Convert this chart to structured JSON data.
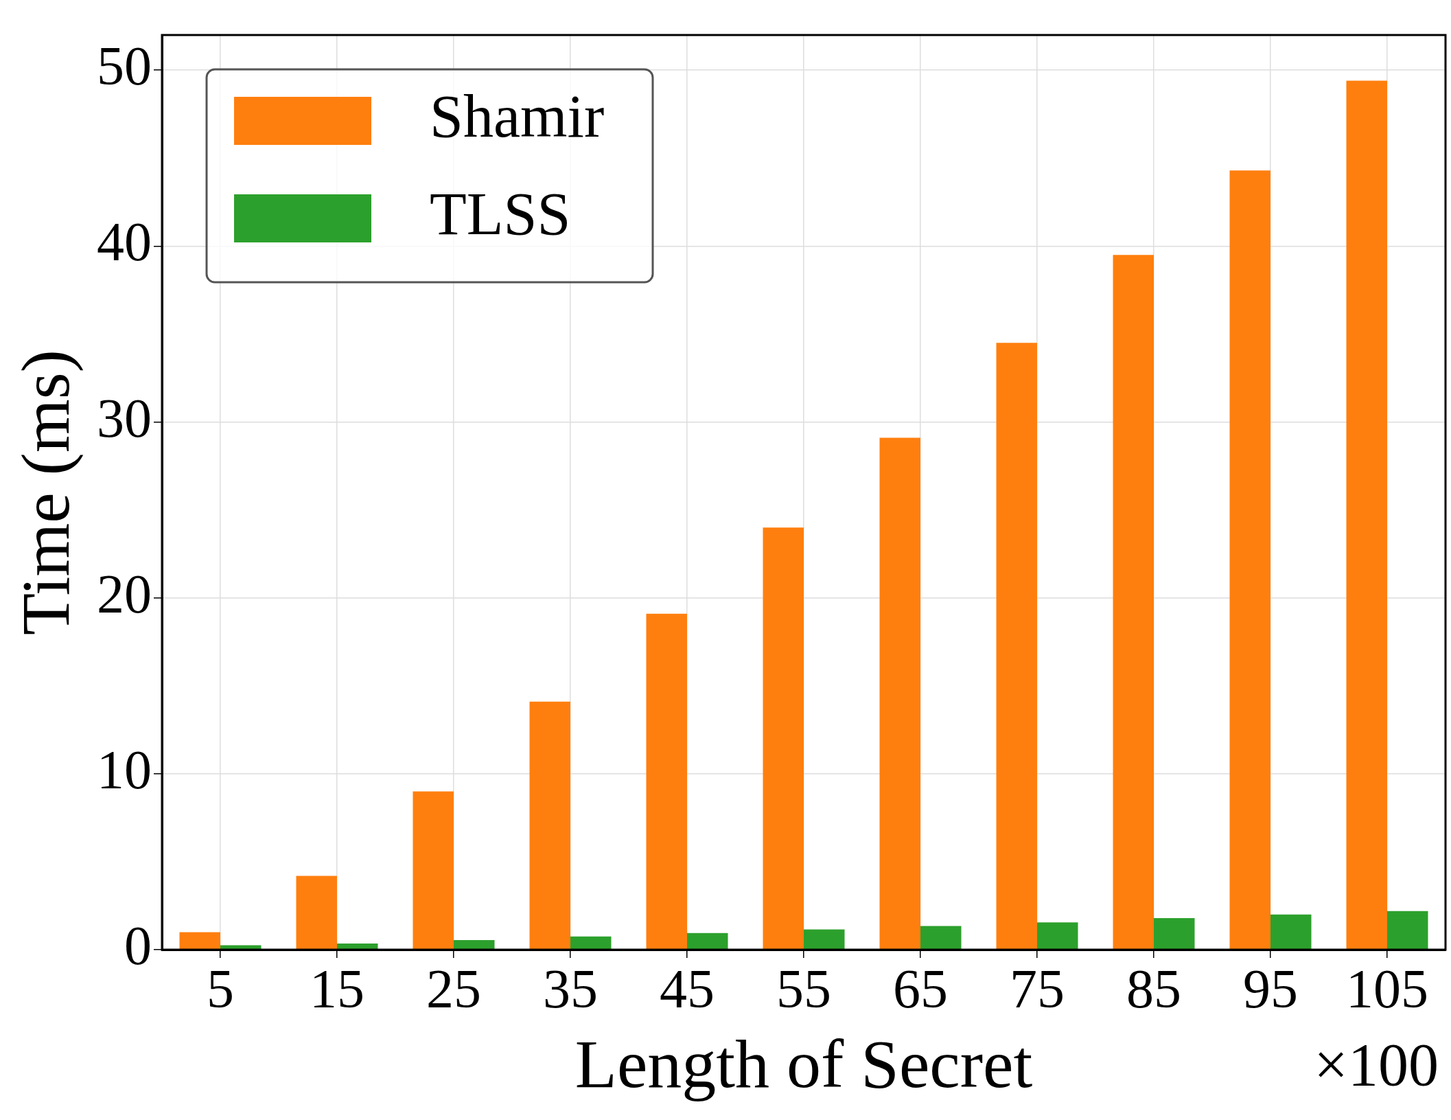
{
  "chart_data": {
    "type": "bar",
    "xlabel": "Length of Secret",
    "ylabel": "Time (ms)",
    "categories": [
      "5",
      "15",
      "25",
      "35",
      "45",
      "55",
      "65",
      "75",
      "85",
      "95",
      "105"
    ],
    "series": [
      {
        "name": "Shamir",
        "color": "#ff7f0e",
        "values": [
          1.0,
          4.2,
          9.0,
          14.1,
          19.1,
          24.0,
          29.1,
          34.5,
          39.5,
          44.3,
          49.4
        ]
      },
      {
        "name": "TLSS",
        "color": "#2ca02c",
        "values": [
          0.25,
          0.35,
          0.55,
          0.75,
          0.95,
          1.15,
          1.35,
          1.55,
          1.8,
          2.0,
          2.2
        ]
      }
    ],
    "ylim": [
      0,
      52
    ],
    "yticks": [
      0,
      10,
      20,
      30,
      40,
      50
    ],
    "grid": true,
    "legend": "top left",
    "annotations": [
      "×100"
    ]
  }
}
